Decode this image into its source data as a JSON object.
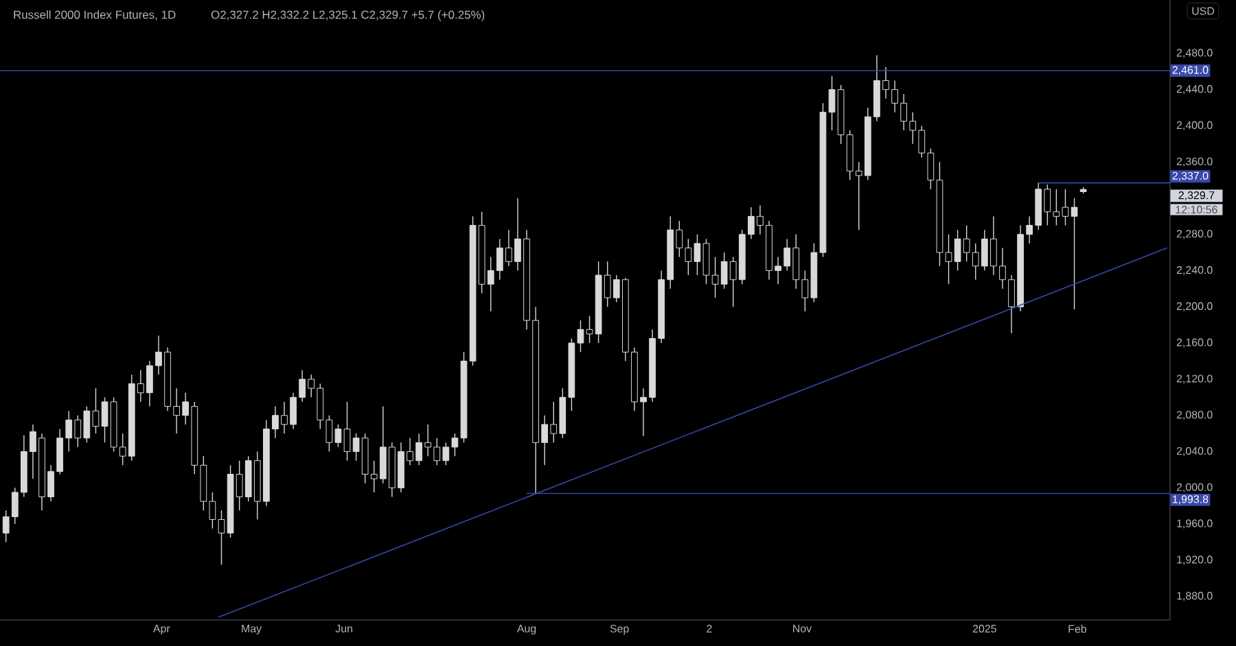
{
  "chart_data": {
    "type": "candlestick",
    "title": "Russell 2000 Index Futures, 1D",
    "subtitle": "O2,327.2 H2,332.2 L2,325.1 C2,329.7 +5.7 (+0.25%)",
    "ylabel": "USD",
    "xlim": [
      "2024-02-07",
      "2025-03-04"
    ],
    "xticks": [
      {
        "value": "2024-04-01",
        "label": "Apr"
      },
      {
        "value": "2024-05-01",
        "label": "May"
      },
      {
        "value": "2024-06-01",
        "label": "Jun"
      },
      {
        "value": "2024-08-01",
        "label": "Aug"
      },
      {
        "value": "2024-09-01",
        "label": "Sep"
      },
      {
        "value": "2024-10-01",
        "label": "2"
      },
      {
        "value": "2024-11-01",
        "label": "Nov"
      },
      {
        "value": "2025-01-01",
        "label": "2025"
      },
      {
        "value": "2025-02-01",
        "label": "Feb"
      }
    ],
    "ylim": [
      1854,
      2539
    ],
    "yticks": [
      {
        "value": 1880,
        "label": "1,880.0"
      },
      {
        "value": 1920,
        "label": "1,920.0"
      },
      {
        "value": 1960,
        "label": "1,960.0"
      },
      {
        "value": 2000,
        "label": "2,000.0"
      },
      {
        "value": 2040,
        "label": "2,040.0"
      },
      {
        "value": 2080,
        "label": "2,080.0"
      },
      {
        "value": 2120,
        "label": "2,120.0"
      },
      {
        "value": 2160,
        "label": "2,160.0"
      },
      {
        "value": 2200,
        "label": "2,200.0"
      },
      {
        "value": 2240,
        "label": "2,240.0"
      },
      {
        "value": 2280,
        "label": "2,280.0"
      },
      {
        "value": 2360,
        "label": "2,360.0"
      },
      {
        "value": 2400,
        "label": "2,400.0"
      },
      {
        "value": 2440,
        "label": "2,440.0"
      },
      {
        "value": 2480,
        "label": "2,480.0"
      }
    ],
    "ref_lines": [
      {
        "axis": "y",
        "value": 2461.0,
        "label": "2,461.0",
        "color": "#3949a8"
      }
    ],
    "annotations": [
      "12:10:56",
      {
        "text": "2,337.0",
        "x": "2025-03-04",
        "y": 2337.0
      },
      {
        "text": "1,993.8",
        "x": "2025-03-04",
        "y": 1993.8
      },
      {
        "text": "2,329.7",
        "x": "2025-03-04",
        "y": 2329.7
      }
    ],
    "series": [
      {
        "type": "candlestick",
        "color": "#d9d9d9",
        "x": [
          "2024-02-09",
          "2024-02-12",
          "2024-02-15",
          "2024-02-18",
          "2024-02-21",
          "2024-02-24",
          "2024-02-27",
          "2024-03-01",
          "2024-03-04",
          "2024-03-07",
          "2024-03-10",
          "2024-03-13",
          "2024-03-16",
          "2024-03-19",
          "2024-03-22",
          "2024-03-25",
          "2024-03-28",
          "2024-03-31",
          "2024-04-03",
          "2024-04-06",
          "2024-04-09",
          "2024-04-12",
          "2024-04-15",
          "2024-04-18",
          "2024-04-21",
          "2024-04-24",
          "2024-04-27",
          "2024-04-30",
          "2024-05-03",
          "2024-05-06",
          "2024-05-09",
          "2024-05-12",
          "2024-05-15",
          "2024-05-18",
          "2024-05-21",
          "2024-05-24",
          "2024-05-27",
          "2024-05-30",
          "2024-06-02",
          "2024-06-05",
          "2024-06-08",
          "2024-06-11",
          "2024-06-14",
          "2024-06-17",
          "2024-06-20",
          "2024-06-23",
          "2024-06-26",
          "2024-06-29",
          "2024-07-02",
          "2024-07-05",
          "2024-07-08",
          "2024-07-11",
          "2024-07-14",
          "2024-07-17",
          "2024-07-20",
          "2024-07-23",
          "2024-07-26",
          "2024-07-29",
          "2024-08-01",
          "2024-08-04",
          "2024-08-07",
          "2024-08-10",
          "2024-08-13",
          "2024-08-16",
          "2024-08-19",
          "2024-08-22",
          "2024-08-25",
          "2024-08-28",
          "2024-08-31",
          "2024-09-03",
          "2024-09-06",
          "2024-09-09",
          "2024-09-12",
          "2024-09-15",
          "2024-09-18",
          "2024-09-21",
          "2024-09-24",
          "2024-09-27",
          "2024-09-30",
          "2024-10-03",
          "2024-10-06",
          "2024-10-09",
          "2024-10-12",
          "2024-10-15",
          "2024-10-18",
          "2024-10-21",
          "2024-10-24",
          "2024-10-27",
          "2024-10-30",
          "2024-11-02",
          "2024-11-05",
          "2024-11-08",
          "2024-11-11",
          "2024-11-14",
          "2024-11-17",
          "2024-11-20",
          "2024-11-23",
          "2024-11-26",
          "2024-11-29",
          "2024-12-02",
          "2024-12-05",
          "2024-12-08",
          "2024-12-11",
          "2024-12-14",
          "2024-12-17",
          "2024-12-20",
          "2024-12-23",
          "2024-12-26",
          "2024-12-29",
          "2025-01-01",
          "2025-01-04",
          "2025-01-07",
          "2025-01-10",
          "2025-01-13",
          "2025-01-16",
          "2025-01-19",
          "2025-01-22",
          "2025-01-25",
          "2025-01-28",
          "2025-01-31",
          "2025-02-03"
        ],
        "ohlc": [
          [
            1950,
            1975,
            1940,
            1968
          ],
          [
            1968,
            2000,
            1960,
            1995
          ],
          [
            1995,
            2058,
            1990,
            2040
          ],
          [
            2040,
            2070,
            2010,
            2062
          ],
          [
            2055,
            2060,
            1975,
            1990
          ],
          [
            1990,
            2025,
            1985,
            2018
          ],
          [
            2018,
            2065,
            2015,
            2055
          ],
          [
            2055,
            2085,
            2040,
            2075
          ],
          [
            2075,
            2080,
            2045,
            2055
          ],
          [
            2055,
            2090,
            2050,
            2085
          ],
          [
            2085,
            2110,
            2060,
            2068
          ],
          [
            2068,
            2100,
            2050,
            2095
          ],
          [
            2095,
            2100,
            2040,
            2045
          ],
          [
            2045,
            2060,
            2025,
            2035
          ],
          [
            2035,
            2125,
            2030,
            2115
          ],
          [
            2115,
            2130,
            2095,
            2105
          ],
          [
            2105,
            2140,
            2090,
            2135
          ],
          [
            2135,
            2168,
            2125,
            2150
          ],
          [
            2150,
            2155,
            2085,
            2090
          ],
          [
            2090,
            2110,
            2060,
            2080
          ],
          [
            2080,
            2105,
            2070,
            2095
          ],
          [
            2090,
            2095,
            2015,
            2025
          ],
          [
            2025,
            2035,
            1975,
            1985
          ],
          [
            1985,
            1995,
            1955,
            1965
          ],
          [
            1965,
            1975,
            1915,
            1950
          ],
          [
            1950,
            2025,
            1945,
            2015
          ],
          [
            2015,
            2030,
            1975,
            1990
          ],
          [
            1990,
            2035,
            1985,
            2030
          ],
          [
            2030,
            2040,
            1965,
            1985
          ],
          [
            1985,
            2075,
            1980,
            2065
          ],
          [
            2065,
            2090,
            2055,
            2080
          ],
          [
            2080,
            2095,
            2060,
            2070
          ],
          [
            2070,
            2105,
            2065,
            2100
          ],
          [
            2100,
            2130,
            2095,
            2120
          ],
          [
            2120,
            2125,
            2100,
            2110
          ],
          [
            2110,
            2115,
            2065,
            2075
          ],
          [
            2075,
            2080,
            2040,
            2050
          ],
          [
            2050,
            2070,
            2045,
            2065
          ],
          [
            2065,
            2095,
            2030,
            2040
          ],
          [
            2040,
            2060,
            2030,
            2055
          ],
          [
            2055,
            2060,
            2005,
            2015
          ],
          [
            2015,
            2030,
            1995,
            2010
          ],
          [
            2010,
            2090,
            2005,
            2045
          ],
          [
            2045,
            2050,
            1990,
            2000
          ],
          [
            2000,
            2050,
            1995,
            2040
          ],
          [
            2040,
            2055,
            2025,
            2030
          ],
          [
            2030,
            2060,
            2025,
            2050
          ],
          [
            2050,
            2070,
            2035,
            2045
          ],
          [
            2045,
            2055,
            2025,
            2030
          ],
          [
            2030,
            2050,
            2025,
            2045
          ],
          [
            2045,
            2060,
            2035,
            2055
          ],
          [
            2055,
            2150,
            2050,
            2140
          ],
          [
            2140,
            2300,
            2135,
            2290
          ],
          [
            2290,
            2305,
            2215,
            2225
          ],
          [
            2225,
            2255,
            2195,
            2240
          ],
          [
            2240,
            2275,
            2230,
            2265
          ],
          [
            2265,
            2285,
            2245,
            2250
          ],
          [
            2250,
            2320,
            2240,
            2275
          ],
          [
            2275,
            2285,
            2175,
            2185
          ],
          [
            2185,
            2200,
            1994,
            2050
          ],
          [
            2050,
            2080,
            2025,
            2070
          ],
          [
            2070,
            2095,
            2050,
            2060
          ],
          [
            2060,
            2110,
            2055,
            2100
          ],
          [
            2100,
            2165,
            2085,
            2160
          ],
          [
            2160,
            2185,
            2150,
            2175
          ],
          [
            2175,
            2190,
            2160,
            2170
          ],
          [
            2170,
            2250,
            2160,
            2235
          ],
          [
            2235,
            2250,
            2200,
            2210
          ],
          [
            2210,
            2235,
            2205,
            2230
          ],
          [
            2230,
            2232,
            2140,
            2150
          ],
          [
            2150,
            2155,
            2085,
            2095
          ],
          [
            2095,
            2110,
            2057,
            2100
          ],
          [
            2100,
            2175,
            2095,
            2165
          ],
          [
            2165,
            2240,
            2160,
            2230
          ],
          [
            2230,
            2300,
            2220,
            2285
          ],
          [
            2285,
            2295,
            2255,
            2265
          ],
          [
            2265,
            2275,
            2235,
            2250
          ],
          [
            2250,
            2280,
            2235,
            2270
          ],
          [
            2270,
            2275,
            2225,
            2235
          ],
          [
            2235,
            2255,
            2210,
            2225
          ],
          [
            2225,
            2260,
            2220,
            2250
          ],
          [
            2250,
            2255,
            2200,
            2230
          ],
          [
            2230,
            2285,
            2225,
            2280
          ],
          [
            2280,
            2310,
            2275,
            2300
          ],
          [
            2300,
            2312,
            2280,
            2290
          ],
          [
            2290,
            2295,
            2230,
            2240
          ],
          [
            2240,
            2255,
            2225,
            2245
          ],
          [
            2245,
            2275,
            2240,
            2265
          ],
          [
            2265,
            2280,
            2220,
            2230
          ],
          [
            2230,
            2240,
            2195,
            2210
          ],
          [
            2210,
            2270,
            2205,
            2260
          ],
          [
            2260,
            2425,
            2255,
            2415
          ],
          [
            2415,
            2455,
            2395,
            2440
          ],
          [
            2440,
            2445,
            2380,
            2390
          ],
          [
            2390,
            2395,
            2340,
            2350
          ],
          [
            2350,
            2360,
            2285,
            2345
          ],
          [
            2345,
            2420,
            2340,
            2410
          ],
          [
            2410,
            2478,
            2405,
            2450
          ],
          [
            2450,
            2465,
            2430,
            2440
          ],
          [
            2440,
            2450,
            2415,
            2425
          ],
          [
            2425,
            2435,
            2395,
            2405
          ],
          [
            2405,
            2415,
            2380,
            2395
          ],
          [
            2395,
            2400,
            2365,
            2370
          ],
          [
            2370,
            2375,
            2330,
            2340
          ],
          [
            2340,
            2360,
            2245,
            2260
          ],
          [
            2260,
            2280,
            2225,
            2250
          ],
          [
            2250,
            2285,
            2240,
            2275
          ],
          [
            2275,
            2290,
            2250,
            2260
          ],
          [
            2260,
            2270,
            2230,
            2245
          ],
          [
            2245,
            2285,
            2240,
            2275
          ],
          [
            2275,
            2300,
            2235,
            2245
          ],
          [
            2245,
            2265,
            2220,
            2230
          ],
          [
            2230,
            2235,
            2171,
            2200
          ],
          [
            2200,
            2290,
            2195,
            2280
          ],
          [
            2280,
            2300,
            2270,
            2290
          ],
          [
            2290,
            2337,
            2285,
            2330
          ],
          [
            2330,
            2335,
            2290,
            2305
          ],
          [
            2305,
            2330,
            2290,
            2300
          ],
          [
            2310,
            2330,
            2290,
            2300
          ],
          [
            2300,
            2320,
            2197,
            2310
          ],
          [
            2327.2,
            2332.2,
            2325.1,
            2329.7
          ]
        ]
      },
      {
        "type": "line",
        "color": "#3949a8",
        "x": [
          "2024-04-20",
          "2025-03-03"
        ],
        "values": [
          1857,
          2265
        ]
      },
      {
        "type": "line",
        "color": "#3949a8",
        "x": [
          "2025-01-19",
          "2025-03-04"
        ],
        "values": [
          2337.0,
          2337.0
        ]
      },
      {
        "type": "line",
        "color": "#3949a8",
        "x": [
          "2024-08-01",
          "2025-03-04"
        ],
        "values": [
          1993.8,
          1993.8
        ]
      }
    ]
  }
}
